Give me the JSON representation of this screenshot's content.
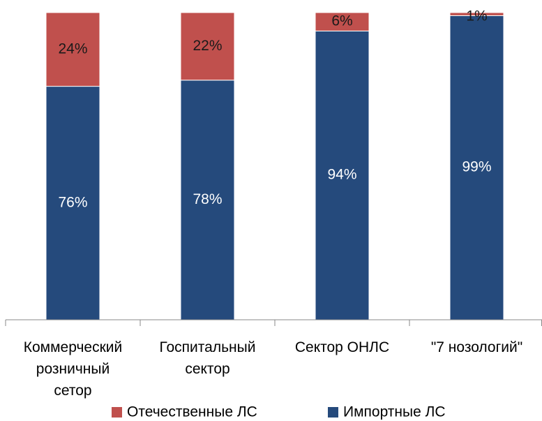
{
  "chart_data": {
    "type": "stacked_bar",
    "categories": [
      "Коммерческий розничный сетор",
      "Госпитальный сектор",
      "Сектор ОНЛС",
      "\"7 нозологий\""
    ],
    "series": [
      {
        "name": "Импортные ЛС",
        "color": "#254a7c",
        "values": [
          76,
          78,
          94,
          99
        ],
        "value_labels": [
          "76%",
          "78%",
          "94%",
          "99%"
        ]
      },
      {
        "name": "Отечественные ЛС",
        "color": "#c0504d",
        "values": [
          24,
          22,
          6,
          1
        ],
        "value_labels": [
          "24%",
          "22%",
          "6%",
          "1%"
        ]
      }
    ],
    "ylim": [
      0,
      100
    ],
    "legend": "bottom"
  }
}
